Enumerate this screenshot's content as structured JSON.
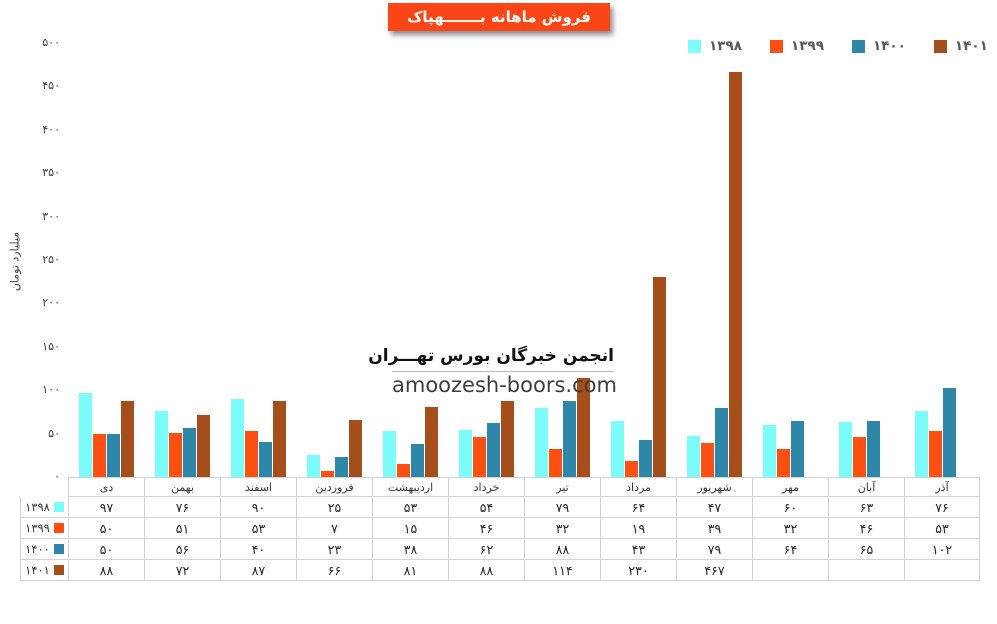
{
  "title": "فروش ماهانه بـــــــهپاک",
  "title_bg_color": "#FA4616",
  "watermark": {
    "line1": "انجمن خبرگان بورس تهـــران",
    "line2": "amoozesh-boors.com"
  },
  "chart_data": {
    "type": "bar",
    "title": "فروش ماهانه بهپاک",
    "ylabel": "میلیارد تومان",
    "ylim": [
      0,
      500
    ],
    "ytick_step": 50,
    "yticks": [
      0,
      50,
      100,
      150,
      200,
      250,
      300,
      350,
      400,
      450,
      500
    ],
    "grid": false,
    "legend_position": "top-right",
    "data_table_shown": true,
    "categories": [
      "دی",
      "بهمن",
      "اسفند",
      "فروردین",
      "اردیبهشت",
      "خرداد",
      "تیر",
      "مرداد",
      "شهریور",
      "مهر",
      "آبان",
      "آذر"
    ],
    "series": [
      {
        "name": "۱۳۹۸",
        "color": "#7CFCFB",
        "values": [
          97,
          76,
          90,
          25,
          53,
          54,
          79,
          64,
          47,
          60,
          63,
          76
        ]
      },
      {
        "name": "۱۳۹۹",
        "color": "#FC4F12",
        "values": [
          50,
          51,
          53,
          7,
          15,
          46,
          32,
          19,
          39,
          32,
          46,
          53
        ]
      },
      {
        "name": "۱۴۰۰",
        "color": "#2E86A8",
        "values": [
          50,
          56,
          40,
          23,
          38,
          62,
          88,
          43,
          79,
          64,
          65,
          102
        ]
      },
      {
        "name": "۱۴۰۱",
        "color": "#A34E1B",
        "values": [
          88,
          72,
          87,
          66,
          81,
          88,
          114,
          230,
          467,
          null,
          null,
          null
        ]
      }
    ]
  }
}
